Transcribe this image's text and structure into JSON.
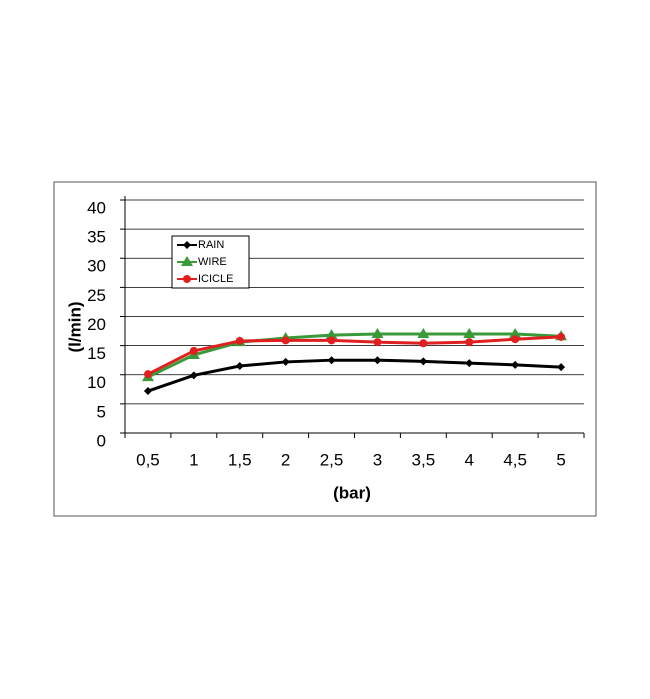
{
  "chart_data": {
    "type": "line",
    "x_label": "(bar)",
    "y_label": "(l/min)",
    "categories": [
      "0,5",
      "1",
      "1,5",
      "2",
      "2,5",
      "3",
      "3,5",
      "4",
      "4,5",
      "5"
    ],
    "series": [
      {
        "name": "RAIN",
        "color": "#000000",
        "marker": "diamond",
        "values": [
          7.2,
          9.9,
          11.5,
          12.2,
          12.5,
          12.5,
          12.3,
          12.0,
          11.7,
          11.3
        ]
      },
      {
        "name": "WIRE",
        "color": "#3a9a3a",
        "marker": "triangle",
        "values": [
          9.6,
          13.4,
          15.6,
          16.3,
          16.8,
          17.0,
          17.0,
          17.0,
          17.0,
          16.6
        ]
      },
      {
        "name": "ICICLE",
        "color": "#e02020",
        "marker": "circle",
        "values": [
          10.1,
          14.1,
          15.8,
          15.9,
          15.9,
          15.6,
          15.4,
          15.6,
          16.1,
          16.5
        ]
      }
    ],
    "ylim": [
      0,
      40
    ],
    "yticks": [
      0,
      5,
      10,
      15,
      20,
      25,
      30,
      35,
      40
    ],
    "grid": true,
    "legend": "top-left"
  }
}
